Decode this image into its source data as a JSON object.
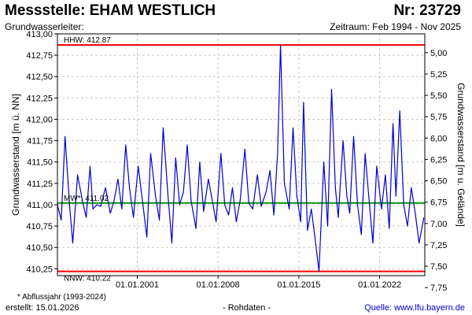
{
  "header": {
    "title": "Messstelle: EHAM WESTLICH",
    "nr": "Nr: 23729",
    "subtitle": "Grundwasserleiter:",
    "period": "Zeitraum: Feb 1994 - Nov 2025"
  },
  "footer": {
    "note": "* Abflussjahr (1993-2024)",
    "created": "erstellt:  15.01.2026",
    "raw": "- Rohdaten -",
    "source": "Quelle: www.lfu.bayern.de"
  },
  "colors": {
    "series": "#0000cc",
    "hhw": "#ff0000",
    "nnw": "#ff0000",
    "mw": "#009900",
    "grid": "#c8c8c8"
  },
  "chart_data": {
    "type": "line",
    "ylabel_left": "Grundwasserstand [m ü. NN]",
    "ylabel_right": "Grundwasserstand [m u. Gelände]",
    "ylim": [
      410.17,
      413.0
    ],
    "y_ticks": [
      "410,25",
      "410,50",
      "410,75",
      "411,00",
      "411,25",
      "411,50",
      "411,75",
      "412,00",
      "412,25",
      "412,50",
      "412,75",
      "413,00"
    ],
    "y_tick_values": [
      410.25,
      410.5,
      410.75,
      411.0,
      411.25,
      411.5,
      411.75,
      412.0,
      412.25,
      412.5,
      412.75,
      413.0
    ],
    "y2_ticks": [
      "5,00",
      "5,25",
      "5,50",
      "5,75",
      "6,00",
      "6,25",
      "6,50",
      "6,75",
      "7,00",
      "7,25",
      "7,50",
      "7,75"
    ],
    "y2_tick_values": [
      5.0,
      5.25,
      5.5,
      5.75,
      6.0,
      6.25,
      6.5,
      6.75,
      7.0,
      7.25,
      7.5,
      7.75
    ],
    "ground_level": 417.78,
    "xlim": [
      "1994-02-01",
      "2025-11-30"
    ],
    "x_ticks": [
      "01.01.2001",
      "01.01.2008",
      "01.01.2015",
      "01.01.2022"
    ],
    "x_tick_values": [
      "2001-01-01",
      "2008-01-01",
      "2015-01-01",
      "2022-01-01"
    ],
    "reference_lines": [
      {
        "key": "hhw",
        "label": "HHW: 412.87",
        "value": 412.87
      },
      {
        "key": "mw",
        "label": "MW*: 411.02",
        "value": 411.02
      },
      {
        "key": "nnw",
        "label": "NNW: 410.22",
        "value": 410.22
      }
    ],
    "series": [
      {
        "x": [
          "1994-02-01",
          "1994-06-01",
          "1994-10-01",
          "1995-03-01",
          "1995-06-01",
          "1995-11-01",
          "1996-04-01",
          "1996-08-01",
          "1996-12-01",
          "1997-03-01",
          "1997-07-01",
          "1997-11-01",
          "1998-04-01",
          "1998-09-01",
          "1999-01-01",
          "1999-05-01",
          "1999-09-01",
          "2000-01-01",
          "2000-05-01",
          "2000-09-01",
          "2001-02-01",
          "2001-07-01",
          "2001-11-01",
          "2002-03-01",
          "2002-08-01",
          "2002-12-01",
          "2003-04-01",
          "2003-09-01",
          "2004-01-01",
          "2004-05-01",
          "2004-09-01",
          "2005-01-01",
          "2005-05-01",
          "2005-09-01",
          "2006-02-01",
          "2006-06-01",
          "2006-10-01",
          "2007-03-01",
          "2007-07-01",
          "2007-11-01",
          "2008-04-01",
          "2008-08-01",
          "2008-12-01",
          "2009-04-01",
          "2009-08-01",
          "2009-12-01",
          "2010-05-01",
          "2010-09-01",
          "2011-01-01",
          "2011-06-01",
          "2011-10-01",
          "2012-03-01",
          "2012-07-01",
          "2012-11-01",
          "2013-03-01",
          "2013-06-01",
          "2013-10-01",
          "2014-03-01",
          "2014-07-01",
          "2014-11-01",
          "2015-03-01",
          "2015-06-01",
          "2015-10-01",
          "2016-02-01",
          "2016-06-01",
          "2016-10-01",
          "2017-03-01",
          "2017-07-01",
          "2017-11-01",
          "2018-03-01",
          "2018-06-01",
          "2018-11-01",
          "2019-03-01",
          "2019-06-01",
          "2019-10-01",
          "2020-02-01",
          "2020-06-01",
          "2020-10-01",
          "2021-02-01",
          "2021-06-01",
          "2021-10-01",
          "2022-03-01",
          "2022-07-01",
          "2022-11-01",
          "2023-03-01",
          "2023-06-01",
          "2023-10-01",
          "2024-02-01",
          "2024-06-01",
          "2024-10-01",
          "2025-02-01",
          "2025-06-01",
          "2025-11-01"
        ],
        "values": [
          411.0,
          410.82,
          411.8,
          410.95,
          410.55,
          411.35,
          411.05,
          410.85,
          411.45,
          410.95,
          411.0,
          410.98,
          411.2,
          410.9,
          411.05,
          411.3,
          410.95,
          411.7,
          411.2,
          410.85,
          411.45,
          411.0,
          410.62,
          411.6,
          411.1,
          410.82,
          411.9,
          411.1,
          410.55,
          411.55,
          411.0,
          411.15,
          411.7,
          411.05,
          410.72,
          411.5,
          410.92,
          411.3,
          411.05,
          410.8,
          411.6,
          411.0,
          410.88,
          411.2,
          410.8,
          411.05,
          411.65,
          411.02,
          410.95,
          411.35,
          410.98,
          411.15,
          411.4,
          410.88,
          411.6,
          412.87,
          411.25,
          410.95,
          411.9,
          411.1,
          410.8,
          412.2,
          410.7,
          410.95,
          410.6,
          410.22,
          411.5,
          410.75,
          412.35,
          411.2,
          410.85,
          411.75,
          411.1,
          410.9,
          411.8,
          411.0,
          410.65,
          411.6,
          411.05,
          410.55,
          411.45,
          410.95,
          411.35,
          410.72,
          411.95,
          411.1,
          412.1,
          411.0,
          410.75,
          411.2,
          410.9,
          410.55,
          410.85
        ],
        "name": ""
      }
    ]
  }
}
